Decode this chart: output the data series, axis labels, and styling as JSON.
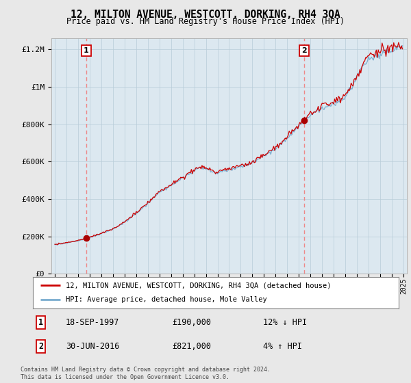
{
  "title": "12, MILTON AVENUE, WESTCOTT, DORKING, RH4 3QA",
  "subtitle": "Price paid vs. HM Land Registry's House Price Index (HPI)",
  "legend_line1": "12, MILTON AVENUE, WESTCOTT, DORKING, RH4 3QA (detached house)",
  "legend_line2": "HPI: Average price, detached house, Mole Valley",
  "transaction1_date": "18-SEP-1997",
  "transaction1_price": "£190,000",
  "transaction1_hpi": "12% ↓ HPI",
  "transaction2_date": "30-JUN-2016",
  "transaction2_price": "£821,000",
  "transaction2_hpi": "4% ↑ HPI",
  "footnote": "Contains HM Land Registry data © Crown copyright and database right 2024.\nThis data is licensed under the Open Government Licence v3.0.",
  "background_color": "#e8e8e8",
  "plot_bg_color": "#dce8f0",
  "red_line_color": "#cc0000",
  "blue_line_color": "#7aadcf",
  "dashed_line_color": "#ee8888",
  "dot_color": "#aa0000",
  "yticks": [
    0,
    200000,
    400000,
    600000,
    800000,
    1000000,
    1200000
  ],
  "ytick_labels": [
    "£0",
    "£200K",
    "£400K",
    "£600K",
    "£800K",
    "£1M",
    "£1.2M"
  ],
  "t1_year": 1997.708,
  "t2_year": 2016.458,
  "t1_price": 190000,
  "t2_price": 821000
}
